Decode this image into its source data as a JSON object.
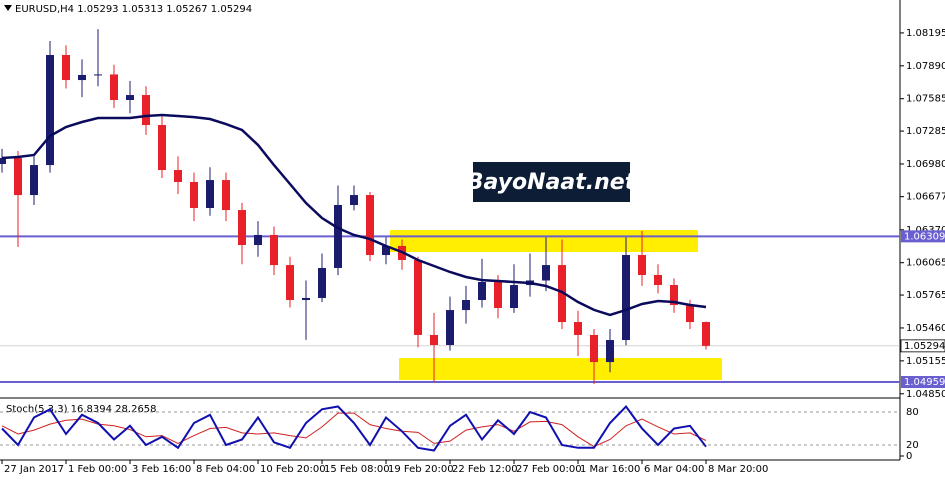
{
  "chart_data": {
    "type": "candlestick",
    "title": "EURUSD,H4  1.05293 1.05313 1.05267 1.05294",
    "watermark": "BayoNaat.net",
    "open": [
      1.0698,
      1.07035,
      1.06692,
      1.0697,
      1.0799,
      1.07758,
      1.07805,
      1.0781,
      1.07573,
      1.07619,
      1.07341,
      1.06924,
      1.06813,
      1.06572,
      1.06831,
      1.06553,
      1.06229,
      1.06322,
      1.06043,
      1.05719,
      1.05738,
      1.06016,
      1.066,
      1.06692,
      1.06136,
      1.0622,
      1.0609,
      1.05395,
      1.05302,
      1.05626,
      1.05719,
      1.05886,
      1.05645,
      1.05858,
      1.059,
      1.06043,
      1.05515,
      1.05395,
      1.05144,
      1.05348,
      1.06136,
      1.05951,
      1.05858,
      1.05673,
      1.05515
    ],
    "high": [
      1.0712,
      1.071,
      1.0705,
      1.0812,
      1.0808,
      1.0795,
      1.0823,
      1.079,
      1.0775,
      1.077,
      1.0742,
      1.0705,
      1.069,
      1.0695,
      1.069,
      1.0662,
      1.0645,
      1.064,
      1.0612,
      1.059,
      1.0615,
      1.0678,
      1.0678,
      1.0672,
      1.063,
      1.0628,
      1.0612,
      1.056,
      1.0575,
      1.0585,
      1.061,
      1.0595,
      1.0605,
      1.0615,
      1.063,
      1.0628,
      1.0562,
      1.0545,
      1.0545,
      1.063,
      1.0636,
      1.0605,
      1.0592,
      1.0572,
      1.0552
    ],
    "low": [
      1.069,
      1.0621,
      1.066,
      1.069,
      1.0768,
      1.076,
      1.077,
      1.075,
      1.0745,
      1.0725,
      1.0685,
      1.067,
      1.0645,
      1.065,
      1.0645,
      1.0605,
      1.0612,
      1.0595,
      1.0565,
      1.0535,
      1.057,
      1.0595,
      1.0655,
      1.0608,
      1.0605,
      1.06,
      1.0528,
      1.04959,
      1.0525,
      1.055,
      1.0565,
      1.0555,
      1.056,
      1.0575,
      1.058,
      1.0545,
      1.052,
      1.0494,
      1.0505,
      1.053,
      1.0585,
      1.0578,
      1.056,
      1.0545,
      1.0526
    ],
    "close": [
      1.07035,
      1.06692,
      1.0697,
      1.0799,
      1.07758,
      1.07805,
      1.0781,
      1.07573,
      1.07619,
      1.07341,
      1.06924,
      1.06813,
      1.06572,
      1.06831,
      1.06553,
      1.06229,
      1.06322,
      1.06043,
      1.05719,
      1.05738,
      1.06016,
      1.066,
      1.06692,
      1.06136,
      1.0622,
      1.0609,
      1.05395,
      1.05302,
      1.05626,
      1.05719,
      1.05886,
      1.05645,
      1.05858,
      1.059,
      1.06043,
      1.05515,
      1.05395,
      1.05144,
      1.05348,
      1.06136,
      1.05951,
      1.05858,
      1.05673,
      1.05515,
      1.05294
    ],
    "bull_color": "#1c1c6e",
    "bear_color": "#e8202a",
    "ma": {
      "color": "#0b0b5e",
      "values": [
        1.07035,
        1.07045,
        1.07063,
        1.07239,
        1.07323,
        1.07369,
        1.07406,
        1.07406,
        1.07406,
        1.07425,
        1.07434,
        1.07425,
        1.07415,
        1.07397,
        1.0735,
        1.07295,
        1.07156,
        1.0697,
        1.06794,
        1.06618,
        1.06479,
        1.06386,
        1.06322,
        1.06284,
        1.0622,
        1.06164,
        1.0609,
        1.06034,
        1.05979,
        1.05932,
        1.05904,
        1.05895,
        1.05886,
        1.05877,
        1.05849,
        1.05793,
        1.05701,
        1.05627,
        1.0558,
        1.05627,
        1.05682,
        1.0571,
        1.05701,
        1.05673,
        1.05654
      ]
    },
    "ylim": [
      1.0482,
      1.085
    ],
    "yticks": [
      1.08195,
      {
        "value": 1.0789,
        "label": "1.07890"
      },
      1.07585,
      1.07285,
      {
        "value": 1.0698,
        "label": "1.06980"
      },
      1.06677,
      {
        "value": 1.0637,
        "label": "1.06370"
      },
      1.06065,
      1.05765,
      {
        "value": 1.0546,
        "label": "1.05460"
      },
      1.05155,
      {
        "value": 1.0485,
        "label": "1.04850"
      }
    ],
    "hlines": [
      1.06309,
      1.04959
    ],
    "hline_color": "#6a5fd0",
    "last_price": 1.05294,
    "xlim": [
      -0.125,
      56.125
    ],
    "xticks": [
      {
        "value": 0,
        "label": "27 Jan 2017"
      },
      {
        "value": 4,
        "label": "1 Feb 00:00"
      },
      {
        "value": 8,
        "label": "3 Feb 16:00"
      },
      {
        "value": 12,
        "label": "8 Feb 04:00"
      },
      {
        "value": 16,
        "label": "10 Feb 20:00"
      },
      {
        "value": 20,
        "label": "15 Feb 08:00"
      },
      {
        "value": 24,
        "label": "19 Feb 20:00"
      },
      {
        "value": 28,
        "label": "22 Feb 12:00"
      },
      {
        "value": 32,
        "label": "27 Feb 00:00"
      },
      {
        "value": 36,
        "label": "1 Mar 16:00"
      },
      {
        "value": 40,
        "label": "6 Mar 04:00"
      },
      {
        "value": 44,
        "label": "8 Mar 20:00"
      }
    ],
    "indicator": {
      "title": "Stoch(5,3,3) 16.8394 28.2658",
      "ylim": [
        0,
        100
      ],
      "yticks": [
        80,
        20,
        0
      ],
      "k": {
        "color": "#1010b0",
        "values": [
          50,
          20,
          70,
          85,
          40,
          75,
          60,
          30,
          55,
          20,
          35,
          15,
          60,
          75,
          20,
          30,
          70,
          25,
          15,
          60,
          85,
          90,
          60,
          20,
          70,
          45,
          15,
          10,
          55,
          75,
          30,
          65,
          40,
          80,
          70,
          20,
          15,
          15,
          60,
          90,
          50,
          20,
          50,
          55,
          16.8394
        ]
      },
      "d": {
        "color": "#d02020",
        "values": [
          55,
          40,
          47,
          58,
          65,
          67,
          58,
          55,
          48,
          35,
          37,
          23,
          37,
          50,
          52,
          42,
          40,
          42,
          37,
          33,
          53,
          78,
          78,
          57,
          50,
          45,
          43,
          23,
          27,
          47,
          53,
          57,
          45,
          62,
          63,
          57,
          35,
          17,
          30,
          55,
          67,
          53,
          40,
          42,
          28.2658
        ]
      }
    }
  }
}
